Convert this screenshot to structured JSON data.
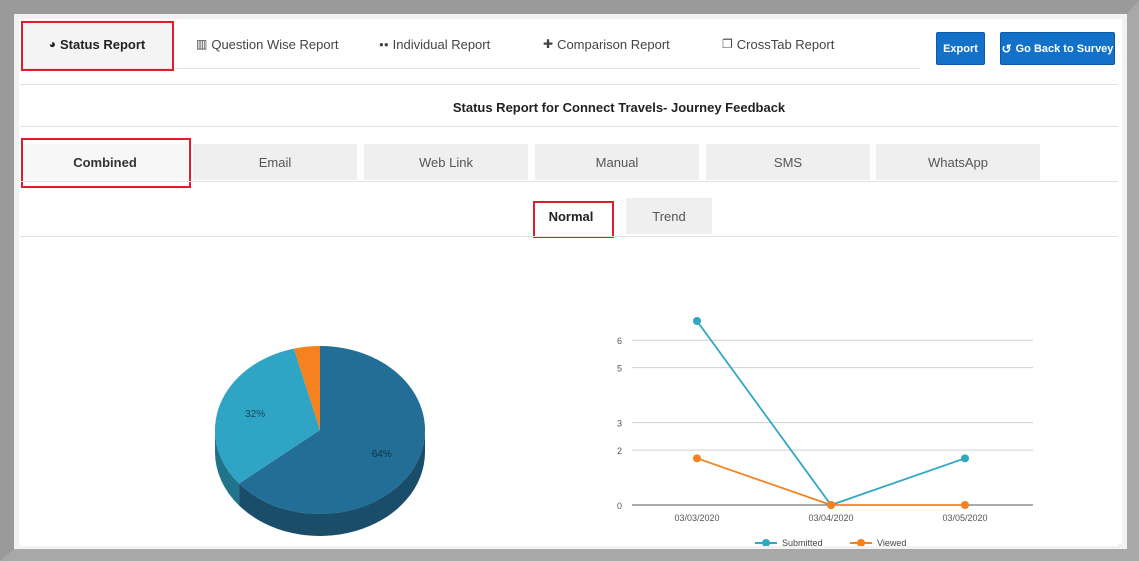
{
  "nav": {
    "tabs": [
      {
        "icon": "◕",
        "label": "Status Report"
      },
      {
        "icon": "▥",
        "label": "Question Wise Report"
      },
      {
        "icon": "●●",
        "label": "Individual Report"
      },
      {
        "icon": "✚",
        "label": "Comparison Report"
      },
      {
        "icon": "❐",
        "label": "CrossTab Report"
      }
    ],
    "export_label": "Export",
    "back_icon": "↺",
    "back_label": "Go Back to Survey"
  },
  "report_title": "Status Report for Connect Travels- Journey Feedback",
  "channels": [
    "Combined",
    "Email",
    "Web Link",
    "Manual",
    "SMS",
    "WhatsApp"
  ],
  "modes": [
    "Normal",
    "Trend"
  ],
  "colors": {
    "accent": "#1471c9",
    "highlight": "#e01e2b",
    "submitted": "#2fa8c0",
    "viewed": "#f5821f",
    "pie_main": "#236e96"
  },
  "chart_data": [
    {
      "type": "pie",
      "slices": [
        {
          "label": "64%",
          "value": 64,
          "color": "#236e96"
        },
        {
          "label": "32%",
          "value": 32,
          "color": "#2fa4c4"
        },
        {
          "label": "",
          "value": 4,
          "color": "#f5821f"
        }
      ]
    },
    {
      "type": "line",
      "categories": [
        "03/03/2020",
        "03/04/2020",
        "03/05/2020"
      ],
      "yticks": [
        "0",
        "2",
        "3",
        "5",
        "6"
      ],
      "series": [
        {
          "name": "Submitted",
          "color": "#2fa8c0",
          "values": [
            6.7,
            0,
            1.7
          ]
        },
        {
          "name": "Viewed",
          "color": "#f5821f",
          "values": [
            1.7,
            0,
            0
          ]
        }
      ],
      "ylim": [
        0,
        6.7
      ],
      "legend": "bottom"
    }
  ]
}
